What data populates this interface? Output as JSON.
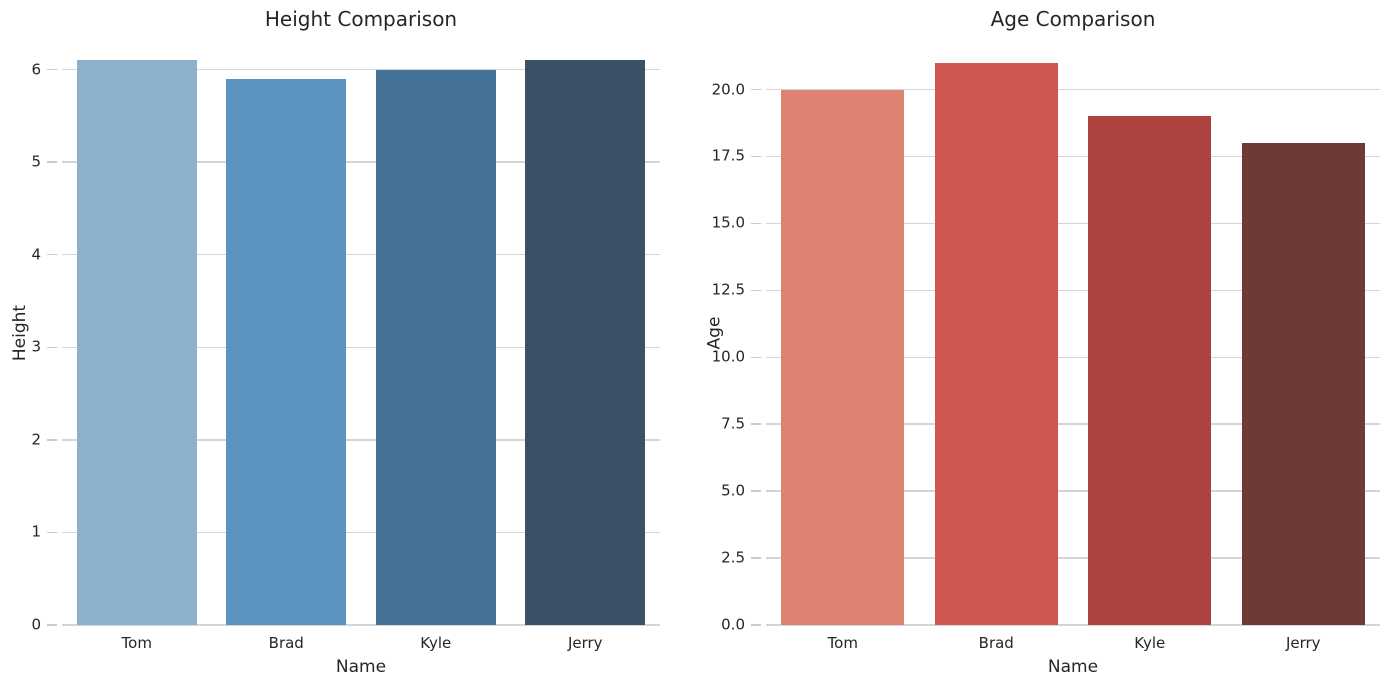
{
  "figure": {
    "background": "#ffffff",
    "text_color": "#262626",
    "grid_color": "#d5d5d5",
    "tick_color": "#cbcbcb"
  },
  "chart_data": [
    {
      "type": "bar",
      "title": "Height Comparison",
      "xlabel": "Name",
      "ylabel": "Height",
      "categories": [
        "Tom",
        "Brad",
        "Kyle",
        "Jerry"
      ],
      "values": [
        6.1,
        5.9,
        6.0,
        6.1
      ],
      "bar_colors": [
        "#8CB1CD",
        "#5C92BE",
        "#447397",
        "#3B5166"
      ],
      "ylim": [
        0,
        6.32
      ],
      "ytick_values": [
        0,
        1,
        2,
        3,
        4,
        5,
        6
      ],
      "ytick_labels": [
        "0",
        "1",
        "2",
        "3",
        "4",
        "5",
        "6"
      ],
      "bar_rel_width": 0.8,
      "grid": true,
      "legend": "none"
    },
    {
      "type": "bar",
      "title": "Age Comparison",
      "xlabel": "Name",
      "ylabel": "Age",
      "categories": [
        "Tom",
        "Brad",
        "Kyle",
        "Jerry"
      ],
      "values": [
        20,
        21,
        19,
        18
      ],
      "bar_colors": [
        "#DE8272",
        "#CE5850",
        "#AE423E",
        "#6E3A38"
      ],
      "ylim": [
        0,
        21.85
      ],
      "ytick_values": [
        0,
        2.5,
        5,
        7.5,
        10,
        12.5,
        15,
        17.5,
        20
      ],
      "ytick_labels": [
        "0.0",
        "2.5",
        "5.0",
        "7.5",
        "10.0",
        "12.5",
        "15.0",
        "17.5",
        "20.0"
      ],
      "bar_rel_width": 0.8,
      "grid": true,
      "legend": "none"
    }
  ]
}
